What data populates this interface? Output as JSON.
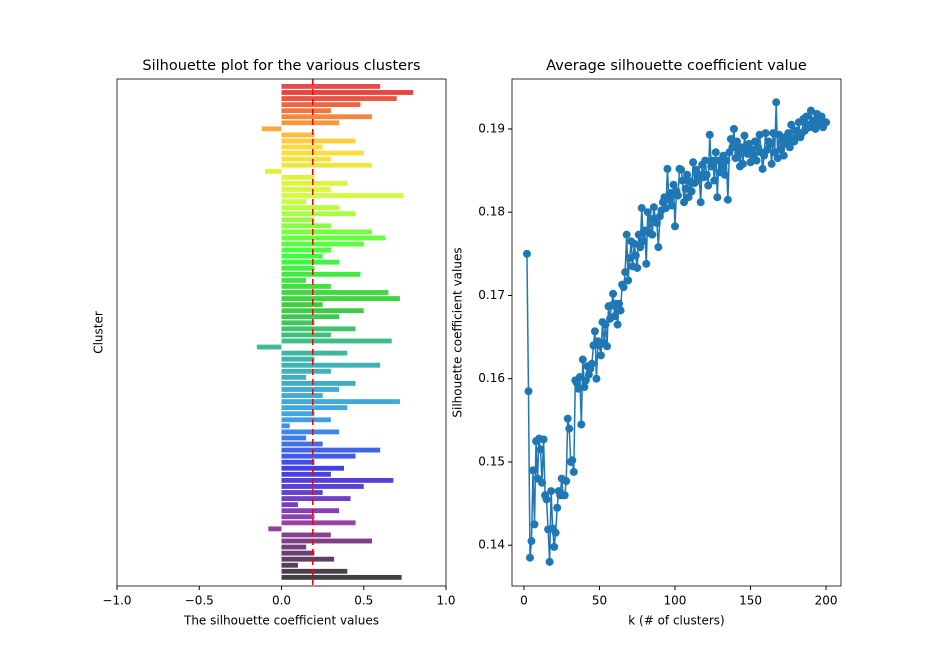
{
  "chart_data": [
    {
      "type": "silhouette",
      "title": "Silhouette plot for the various clusters",
      "xlabel": "The silhouette coefficient values",
      "ylabel": "Cluster",
      "xlim": [
        -1,
        1
      ],
      "xticks": [
        {
          "value": -1,
          "label": "−1.0"
        },
        {
          "value": -0.5,
          "label": "−0.5"
        },
        {
          "value": 0,
          "label": "0.0"
        },
        {
          "value": 0.5,
          "label": "0.5"
        },
        {
          "value": 1,
          "label": "1.0"
        }
      ],
      "colormap": "nipy_spectral",
      "avg_line": 0.19,
      "avg_color": "#ff0000",
      "values": [
        0.73,
        0.4,
        0.1,
        0.32,
        0.2,
        0.15,
        0.55,
        0.3,
        -0.08,
        0.45,
        0.2,
        0.35,
        0.1,
        0.42,
        0.25,
        0.5,
        0.68,
        0.3,
        0.38,
        0.2,
        0.45,
        0.6,
        0.25,
        0.15,
        0.35,
        0.05,
        0.3,
        0.2,
        0.4,
        0.72,
        0.25,
        0.35,
        0.45,
        0.15,
        0.3,
        0.6,
        0.2,
        0.4,
        -0.15,
        0.67,
        0.3,
        0.45,
        0.2,
        0.35,
        0.5,
        0.25,
        0.72,
        0.65,
        0.3,
        0.15,
        0.48,
        0.2,
        0.35,
        0.25,
        0.3,
        0.5,
        0.63,
        0.55,
        0.3,
        0.2,
        0.45,
        0.35,
        0.15,
        0.74,
        0.3,
        0.4,
        0.2,
        -0.1,
        0.55,
        0.3,
        0.5,
        0.25,
        0.45,
        0.2,
        -0.12,
        0.35,
        0.55,
        0.3,
        0.48,
        0.7,
        0.8,
        0.6
      ]
    },
    {
      "type": "line",
      "title": "Average silhouette coefficient value",
      "xlabel": "k (# of clusters)",
      "ylabel": "Silhouette coefficient values",
      "color": "#1f77b4",
      "xlim": [
        -7.9,
        209.9
      ],
      "ylim": [
        0.1351,
        0.196
      ],
      "xticks": [
        0,
        50,
        100,
        150,
        200
      ],
      "yticks": [
        0.14,
        0.15,
        0.16,
        0.17,
        0.18,
        0.19
      ],
      "x": [
        2,
        3,
        4,
        5,
        6,
        7,
        8,
        9,
        10,
        11,
        12,
        13,
        14,
        15,
        16,
        17,
        18,
        19,
        20,
        21,
        22,
        23,
        24,
        25,
        26,
        27,
        28,
        29,
        30,
        31,
        32,
        33,
        34,
        35,
        36,
        37,
        38,
        39,
        40,
        41,
        42,
        43,
        44,
        45,
        46,
        47,
        48,
        49,
        50,
        51,
        52,
        53,
        54,
        55,
        56,
        57,
        58,
        59,
        60,
        61,
        62,
        63,
        64,
        65,
        66,
        67,
        68,
        69,
        70,
        71,
        72,
        73,
        74,
        75,
        76,
        77,
        78,
        79,
        80,
        81,
        82,
        83,
        84,
        85,
        86,
        87,
        88,
        89,
        90,
        91,
        92,
        93,
        94,
        95,
        96,
        97,
        98,
        99,
        100,
        101,
        102,
        103,
        104,
        105,
        106,
        107,
        108,
        109,
        110,
        111,
        112,
        113,
        114,
        115,
        116,
        117,
        118,
        119,
        120,
        121,
        122,
        123,
        124,
        125,
        126,
        127,
        128,
        129,
        130,
        131,
        132,
        133,
        134,
        135,
        136,
        137,
        138,
        139,
        140,
        141,
        142,
        143,
        144,
        145,
        146,
        147,
        148,
        149,
        150,
        151,
        152,
        153,
        154,
        155,
        156,
        157,
        158,
        159,
        160,
        161,
        162,
        163,
        164,
        165,
        166,
        167,
        168,
        169,
        170,
        171,
        172,
        173,
        174,
        175,
        176,
        177,
        178,
        179,
        180,
        181,
        182,
        183,
        184,
        185,
        186,
        187,
        188,
        189,
        190,
        191,
        192,
        193,
        194,
        195,
        196,
        197,
        198,
        199,
        200
      ],
      "values": [
        0.175,
        0.1585,
        0.1385,
        0.1405,
        0.149,
        0.1425,
        0.1525,
        0.148,
        0.1528,
        0.1515,
        0.1475,
        0.1527,
        0.146,
        0.1455,
        0.1419,
        0.138,
        0.1465,
        0.142,
        0.1398,
        0.1415,
        0.1445,
        0.1465,
        0.146,
        0.148,
        0.146,
        0.146,
        0.1477,
        0.1552,
        0.154,
        0.15,
        0.1502,
        0.1488,
        0.1598,
        0.1595,
        0.1588,
        0.1602,
        0.1545,
        0.1623,
        0.159,
        0.1598,
        0.1615,
        0.1605,
        0.1612,
        0.1618,
        0.164,
        0.1657,
        0.16,
        0.1645,
        0.164,
        0.1628,
        0.1668,
        0.1643,
        0.1665,
        0.1639,
        0.1687,
        0.1672,
        0.1688,
        0.1702,
        0.1675,
        0.169,
        0.1665,
        0.169,
        0.1682,
        0.1713,
        0.171,
        0.1728,
        0.1773,
        0.1718,
        0.1745,
        0.1765,
        0.1735,
        0.1762,
        0.1748,
        0.1733,
        0.1773,
        0.1758,
        0.1805,
        0.1765,
        0.1778,
        0.1738,
        0.18,
        0.1775,
        0.1792,
        0.1773,
        0.1806,
        0.1792,
        0.1787,
        0.1758,
        0.1795,
        0.1802,
        0.1812,
        0.1818,
        0.1805,
        0.1852,
        0.1815,
        0.1823,
        0.1808,
        0.1833,
        0.1783,
        0.1825,
        0.182,
        0.1852,
        0.1851,
        0.1838,
        0.1812,
        0.1828,
        0.1845,
        0.1818,
        0.1837,
        0.1825,
        0.186,
        0.1835,
        0.1851,
        0.1838,
        0.1845,
        0.1812,
        0.1857,
        0.1842,
        0.1862,
        0.1845,
        0.1832,
        0.1893,
        0.1855,
        0.1862,
        0.1838,
        0.1872,
        0.1818,
        0.1862,
        0.1848,
        0.1855,
        0.1868,
        0.1845,
        0.1862,
        0.1815,
        0.1872,
        0.1888,
        0.1878,
        0.19,
        0.1865,
        0.1885,
        0.187,
        0.1855,
        0.1878,
        0.1858,
        0.1892,
        0.1875,
        0.187,
        0.1882,
        0.186,
        0.1875,
        0.1868,
        0.1885,
        0.1862,
        0.1878,
        0.1893,
        0.1872,
        0.1852,
        0.1868,
        0.1895,
        0.1875,
        0.1885,
        0.1882,
        0.1858,
        0.1895,
        0.1872,
        0.1932,
        0.1865,
        0.1893,
        0.1875,
        0.1888,
        0.1868,
        0.189,
        0.1882,
        0.1895,
        0.1878,
        0.1905,
        0.1888,
        0.1885,
        0.1898,
        0.1892,
        0.1908,
        0.189,
        0.1895,
        0.1912,
        0.1898,
        0.1915,
        0.1905,
        0.1902,
        0.1922,
        0.1908,
        0.191,
        0.19,
        0.1918,
        0.1905,
        0.191,
        0.1915,
        0.1902,
        0.1908,
        0.1908
      ]
    }
  ]
}
